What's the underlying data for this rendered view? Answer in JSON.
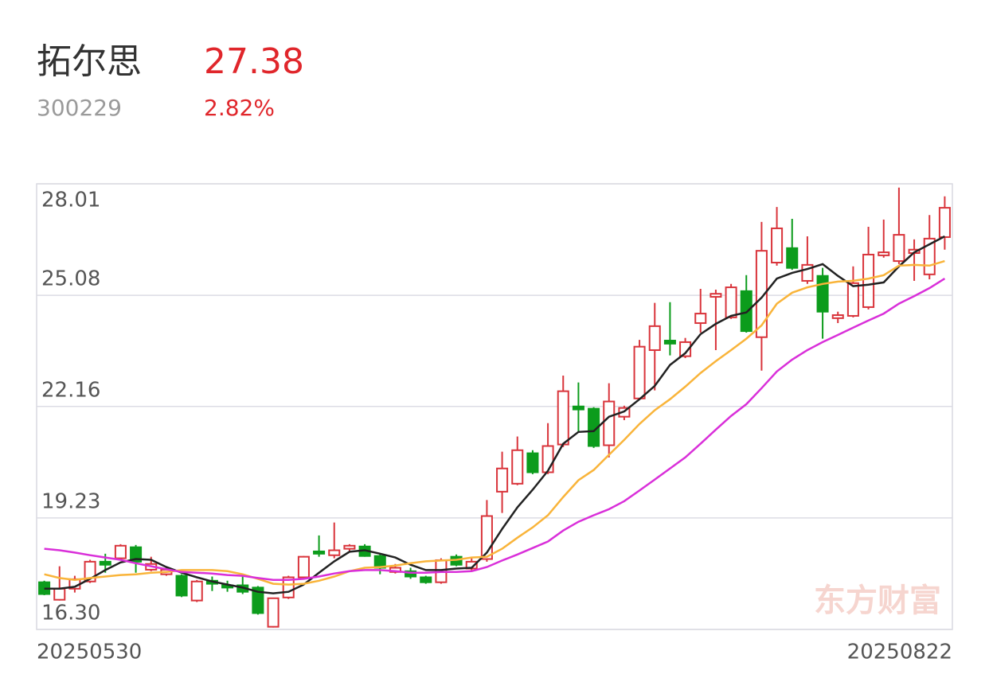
{
  "header": {
    "name": "拓尔思",
    "price": "27.38",
    "code": "300229",
    "change": "2.82%"
  },
  "chart_data": {
    "type": "candlestick",
    "categories": [
      "20250530",
      null,
      null,
      null,
      null,
      null,
      null,
      null,
      null,
      null,
      null,
      null,
      null,
      null,
      null,
      null,
      null,
      null,
      null,
      null,
      null,
      null,
      null,
      null,
      null,
      null,
      null,
      null,
      null,
      null,
      null,
      null,
      null,
      null,
      null,
      null,
      null,
      null,
      null,
      null,
      null,
      null,
      null,
      null,
      null,
      null,
      null,
      null,
      null,
      null,
      null,
      null,
      null,
      null,
      null,
      null,
      null,
      null,
      null,
      "20250822"
    ],
    "open": [
      17.54,
      17.08,
      17.37,
      17.56,
      18.08,
      18.17,
      18.46,
      17.87,
      17.75,
      17.71,
      17.06,
      17.58,
      17.46,
      17.46,
      17.4,
      16.37,
      17.14,
      17.67,
      18.35,
      18.25,
      18.42,
      18.48,
      18.23,
      17.81,
      17.83,
      17.67,
      17.54,
      18.21,
      17.9,
      18.15,
      19.92,
      20.13,
      20.93,
      20.43,
      21.16,
      22.16,
      22.1,
      21.14,
      21.89,
      22.37,
      23.64,
      23.89,
      23.48,
      24.35,
      25.04,
      24.5,
      25.19,
      23.98,
      25.94,
      26.32,
      25.46,
      25.59,
      24.48,
      24.54,
      24.77,
      26.13,
      25.98,
      26.19,
      25.63,
      26.61
    ],
    "high": [
      17.58,
      17.96,
      17.71,
      18.13,
      18.29,
      18.54,
      18.52,
      18.21,
      17.96,
      17.75,
      17.6,
      17.69,
      17.58,
      17.75,
      17.44,
      17.12,
      17.71,
      18.23,
      18.77,
      19.11,
      18.54,
      18.54,
      18.27,
      18.02,
      17.92,
      17.71,
      18.17,
      18.27,
      18.17,
      19.7,
      20.97,
      21.37,
      21.01,
      21.72,
      22.97,
      22.79,
      22.14,
      22.77,
      22.18,
      23.91,
      24.88,
      24.9,
      23.96,
      25.25,
      25.23,
      25.38,
      25.61,
      27.01,
      27.4,
      27.09,
      26.63,
      25.8,
      24.65,
      25.84,
      26.88,
      27.07,
      27.91,
      26.55,
      27.19,
      27.68
    ],
    "low": [
      17.2,
      17.06,
      17.27,
      17.52,
      17.79,
      18.13,
      17.79,
      17.83,
      17.71,
      17.15,
      17.02,
      17.31,
      17.29,
      17.23,
      16.69,
      16.35,
      17.1,
      17.65,
      18.21,
      18.17,
      18.33,
      18.21,
      17.75,
      17.77,
      17.63,
      17.5,
      17.5,
      17.96,
      17.85,
      18.08,
      19.36,
      20.09,
      20.38,
      20.38,
      21.09,
      21.49,
      21.07,
      20.82,
      21.8,
      22.33,
      22.58,
      23.5,
      23.43,
      24.1,
      23.64,
      24.46,
      24.1,
      23.1,
      25.86,
      25.75,
      25.38,
      23.94,
      24.35,
      24.5,
      24.71,
      26.07,
      25.9,
      25.46,
      25.5,
      26.28
    ],
    "close": [
      17.23,
      17.37,
      17.62,
      18.08,
      18.0,
      18.5,
      18.08,
      18.02,
      17.87,
      17.19,
      17.56,
      17.5,
      17.4,
      17.29,
      16.73,
      17.12,
      17.67,
      18.21,
      18.29,
      18.38,
      18.5,
      18.23,
      17.92,
      17.92,
      17.69,
      17.54,
      18.12,
      18.0,
      18.08,
      19.28,
      20.53,
      21.01,
      20.43,
      21.12,
      22.56,
      22.08,
      21.12,
      22.29,
      22.12,
      23.73,
      24.27,
      23.81,
      23.85,
      24.6,
      25.12,
      25.29,
      24.14,
      26.25,
      26.84,
      25.8,
      25.88,
      24.65,
      24.56,
      25.4,
      26.15,
      26.21,
      26.67,
      26.28,
      26.57,
      27.38
    ],
    "up_color": "#d9343b",
    "down_color": "#0c9c1c",
    "ma": [
      {
        "color": "#222222",
        "values": [
          17.37,
          17.37,
          17.42,
          17.63,
          17.86,
          18.06,
          18.15,
          18.13,
          17.94,
          17.79,
          17.67,
          17.56,
          17.48,
          17.4,
          17.29,
          17.25,
          17.29,
          17.48,
          17.79,
          18.09,
          18.34,
          18.38,
          18.29,
          18.19,
          18.0,
          17.86,
          17.86,
          17.9,
          17.92,
          18.32,
          18.94,
          19.51,
          19.97,
          20.47,
          21.18,
          21.49,
          21.51,
          21.89,
          22.03,
          22.35,
          22.7,
          23.25,
          23.56,
          24.06,
          24.33,
          24.54,
          24.63,
          25.02,
          25.52,
          25.67,
          25.77,
          25.9,
          25.59,
          25.32,
          25.36,
          25.42,
          25.84,
          26.21,
          26.42,
          26.63
        ]
      },
      {
        "color": "#f9b43a",
        "values": [
          17.75,
          17.65,
          17.6,
          17.65,
          17.69,
          17.73,
          17.75,
          17.79,
          17.81,
          17.86,
          17.86,
          17.86,
          17.83,
          17.75,
          17.63,
          17.5,
          17.48,
          17.5,
          17.58,
          17.69,
          17.83,
          17.92,
          17.94,
          17.98,
          18.04,
          18.09,
          18.11,
          18.13,
          18.19,
          18.21,
          18.42,
          18.71,
          18.98,
          19.3,
          19.78,
          20.22,
          20.49,
          20.89,
          21.28,
          21.7,
          22.06,
          22.35,
          22.68,
          23.04,
          23.35,
          23.64,
          23.94,
          24.29,
          24.86,
          25.15,
          25.29,
          25.38,
          25.44,
          25.46,
          25.52,
          25.61,
          25.86,
          25.88,
          25.86,
          25.98
        ]
      },
      {
        "color": "#d92fd9",
        "values": [
          18.42,
          18.38,
          18.32,
          18.25,
          18.19,
          18.13,
          18.04,
          17.96,
          17.88,
          17.81,
          17.79,
          17.77,
          17.73,
          17.71,
          17.65,
          17.6,
          17.6,
          17.63,
          17.69,
          17.77,
          17.83,
          17.86,
          17.86,
          17.83,
          17.79,
          17.79,
          17.81,
          17.81,
          17.83,
          17.94,
          18.11,
          18.27,
          18.44,
          18.61,
          18.9,
          19.13,
          19.3,
          19.46,
          19.67,
          19.95,
          20.24,
          20.53,
          20.82,
          21.18,
          21.55,
          21.91,
          22.22,
          22.64,
          23.08,
          23.39,
          23.64,
          23.85,
          24.04,
          24.23,
          24.42,
          24.6,
          24.86,
          25.06,
          25.27,
          25.52
        ]
      }
    ],
    "ylim": [
      16.3,
      28.01
    ],
    "yticks": [
      {
        "value": 16.3,
        "label": "16.30"
      },
      19.23,
      22.16,
      25.08,
      28.01
    ],
    "grid": true,
    "watermark": "东方财富"
  }
}
